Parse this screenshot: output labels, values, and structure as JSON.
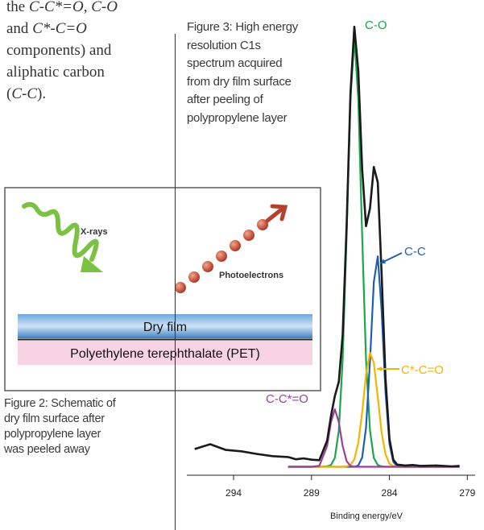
{
  "paragraph": {
    "lines": [
      [
        {
          "text": "the ",
          "italic": false
        },
        {
          "text": "C-C*=O",
          "italic": true
        },
        {
          "text": ", ",
          "italic": false
        },
        {
          "text": "C-O",
          "italic": true
        }
      ],
      [
        {
          "text": "and ",
          "italic": false
        },
        {
          "text": "C*-C=O",
          "italic": true
        }
      ],
      [
        {
          "text": "components) and",
          "italic": false
        }
      ],
      [
        {
          "text": "aliphatic carbon",
          "italic": false
        }
      ],
      [
        {
          "text": "(",
          "italic": false
        },
        {
          "text": "C-C",
          "italic": true
        },
        {
          "text": ").",
          "italic": false
        }
      ]
    ]
  },
  "figure2": {
    "xray_label": "X-rays",
    "photoelectron_label": "Photoelectrons",
    "layers": [
      "Dry film",
      "Polyethylene terephthalate (PET)"
    ],
    "caption": [
      "Figure 2: Schematic of",
      "dry film surface after",
      "polypropylene layer",
      "was peeled away"
    ]
  },
  "chart_data": {
    "type": "line",
    "caption": [
      "Figure 3: High energy",
      "resolution C1s",
      "spectrum acquired",
      "from dry film surface",
      "after peeling of",
      "polypropylene layer"
    ],
    "x_label": "Binding energy/eV",
    "xlim": [
      297,
      278.5
    ],
    "xticks": [
      294,
      289,
      284,
      279
    ],
    "ylim": [
      0,
      102
    ],
    "x": [
      296.5,
      295.5,
      294.5,
      293.5,
      292.5,
      291.5,
      290.5,
      290,
      289.5,
      289,
      288.5,
      288,
      287.75,
      287.5,
      287.25,
      287,
      286.75,
      286.5,
      286.25,
      286,
      285.75,
      285.5,
      285.25,
      285,
      284.75,
      284.5,
      284.25,
      284,
      283.75,
      283.5,
      283,
      282.5,
      282,
      281,
      280,
      279.5
    ],
    "series": [
      {
        "color": "#1a1a1a",
        "values": [
          5.0,
          6.1,
          4.8,
          4.5,
          3.9,
          3.4,
          3.2,
          2.7,
          2.9,
          2.6,
          2.5,
          6.9,
          12.5,
          17.0,
          20.2,
          30.8,
          55.5,
          85.5,
          100.5,
          90.5,
          68.4,
          55.4,
          59.4,
          68.8,
          65.3,
          44.5,
          21.0,
          7.3,
          2.6,
          1.5,
          1.3,
          1.4,
          1.2,
          1.3,
          1.1,
          1.2
        ]
      },
      {
        "name": "C-O",
        "color": "#1aa64a",
        "values": [
          null,
          null,
          null,
          null,
          null,
          null,
          1,
          1,
          1,
          1,
          1,
          1.1,
          1.4,
          3,
          9.2,
          25.2,
          53.3,
          84.1,
          98,
          84.1,
          53.3,
          25.2,
          9.2,
          3,
          1.4,
          1.1,
          1,
          1,
          1,
          1,
          1,
          1,
          1,
          1,
          1,
          1
        ]
      },
      {
        "name": "C-C",
        "color": "#1f5fb0",
        "values": [
          null,
          null,
          null,
          null,
          null,
          null,
          1,
          1,
          1,
          1,
          1,
          1,
          1,
          1,
          1,
          1,
          1,
          1,
          1,
          1.3,
          3.1,
          9.8,
          24.8,
          42.8,
          48.6,
          36.2,
          17.8,
          6.2,
          2.1,
          1.1,
          1,
          1,
          1,
          1,
          1,
          1
        ]
      },
      {
        "name": "C*-C=O",
        "color": "#f5b400",
        "values": [
          null,
          null,
          null,
          null,
          null,
          null,
          1,
          1,
          1,
          1,
          1,
          1,
          1,
          1,
          1,
          1,
          1.1,
          1.4,
          2.7,
          6.4,
          13.3,
          21.8,
          26.8,
          24.5,
          16.8,
          8.7,
          3.8,
          1.7,
          1.2,
          1,
          1,
          1,
          1,
          1,
          1,
          1
        ]
      },
      {
        "name": "C-C*=O",
        "color": "#9b3f9b",
        "values": [
          null,
          null,
          null,
          null,
          null,
          null,
          1,
          1,
          1,
          1,
          1.2,
          5.7,
          11.1,
          14,
          11.1,
          5.7,
          2.3,
          1.2,
          1,
          1,
          1,
          1,
          1,
          1,
          1,
          1,
          1,
          1,
          1,
          1,
          1,
          1,
          1,
          1,
          1,
          1
        ]
      }
    ]
  }
}
